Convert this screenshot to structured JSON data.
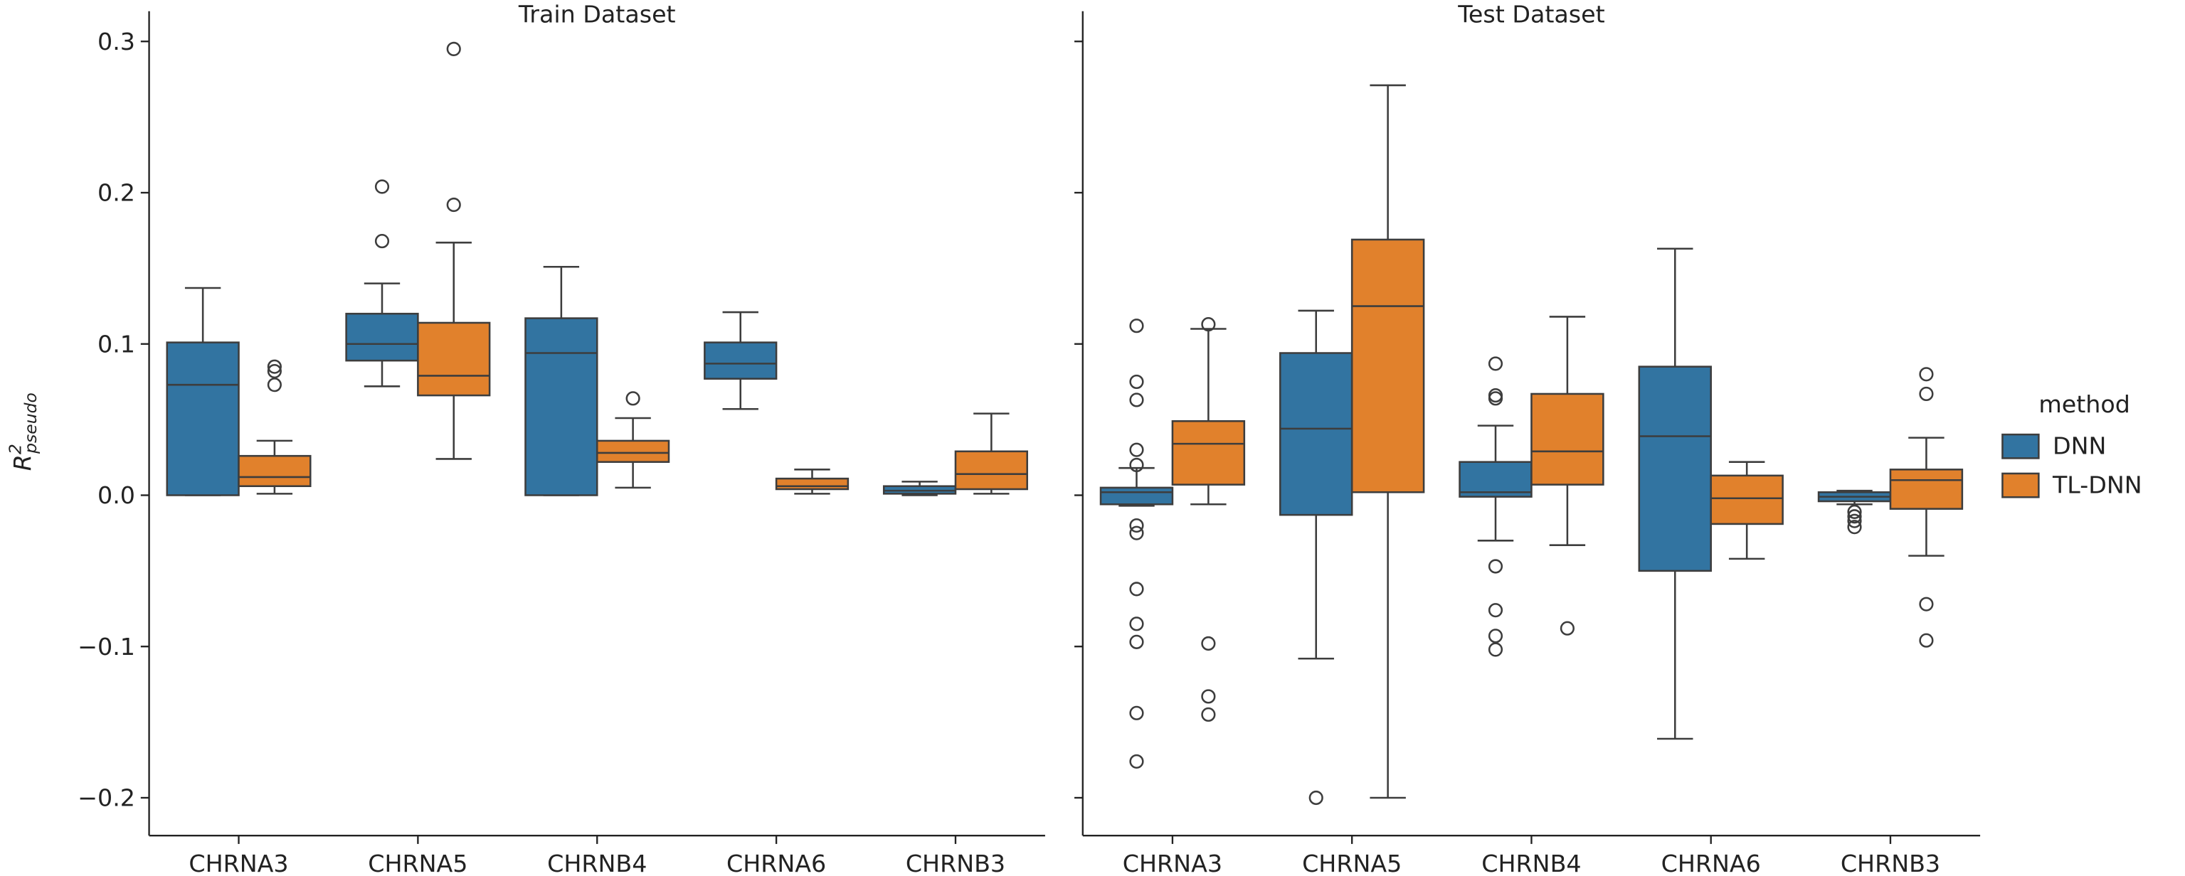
{
  "chart_data": [
    {
      "type": "box",
      "title": "Train Dataset",
      "ylabel": {
        "base": "R",
        "sup": "2",
        "sub": "pseudo"
      },
      "categories": [
        "CHRNA3",
        "CHRNA5",
        "CHRNB4",
        "CHRNA6",
        "CHRNB3"
      ],
      "ylim": [
        -0.225,
        0.32
      ],
      "yticks": [
        {
          "value": -0.2,
          "label": "−0.2"
        },
        {
          "value": -0.1,
          "label": "−0.1"
        },
        {
          "value": 0,
          "label": "0.0"
        },
        0.1,
        0.2,
        0.3
      ],
      "series": [
        {
          "color": "#3274a1",
          "boxes": [
            {
              "min": 0,
              "q1": 0,
              "median": 0.073,
              "q3": 0.101,
              "max": 0.137,
              "outliers": []
            },
            {
              "min": 0.072,
              "q1": 0.089,
              "median": 0.1,
              "q3": 0.12,
              "max": 0.14,
              "outliers": [
                0.168,
                0.204
              ]
            },
            {
              "min": 0,
              "q1": 0,
              "median": 0.094,
              "q3": 0.117,
              "max": 0.151,
              "outliers": []
            },
            {
              "min": 0.057,
              "q1": 0.077,
              "median": 0.087,
              "q3": 0.101,
              "max": 0.121,
              "outliers": []
            },
            {
              "min": 0,
              "q1": 0.001,
              "median": 0.003,
              "q3": 0.006,
              "max": 0.009,
              "outliers": []
            }
          ]
        },
        {
          "color": "#e1812c",
          "boxes": [
            {
              "min": 0.001,
              "q1": 0.006,
              "median": 0.012,
              "q3": 0.026,
              "max": 0.036,
              "outliers": [
                0.073,
                0.082,
                0.085
              ]
            },
            {
              "min": 0.024,
              "q1": 0.066,
              "median": 0.079,
              "q3": 0.114,
              "max": 0.167,
              "outliers": [
                0.192,
                0.295
              ]
            },
            {
              "min": 0.005,
              "q1": 0.022,
              "median": 0.028,
              "q3": 0.036,
              "max": 0.051,
              "outliers": [
                0.064
              ]
            },
            {
              "min": 0.001,
              "q1": 0.004,
              "median": 0.006,
              "q3": 0.011,
              "max": 0.017,
              "outliers": []
            },
            {
              "min": 0.001,
              "q1": 0.004,
              "median": 0.014,
              "q3": 0.029,
              "max": 0.054,
              "outliers": []
            }
          ]
        }
      ]
    },
    {
      "type": "box",
      "title": "Test Dataset",
      "categories": [
        "CHRNA3",
        "CHRNA5",
        "CHRNB4",
        "CHRNA6",
        "CHRNB3"
      ],
      "ylim": [
        -0.225,
        0.32
      ],
      "yticks": [
        -0.2,
        -0.1,
        0,
        0.1,
        0.2,
        0.3
      ],
      "legend": "right",
      "legend_title": "method",
      "series": [
        {
          "name": "DNN",
          "color": "#3274a1",
          "boxes": [
            {
              "min": -0.007,
              "q1": -0.006,
              "median": 0.002,
              "q3": 0.005,
              "max": 0.018,
              "outliers": [
                0.112,
                0.075,
                0.063,
                0.03,
                0.02,
                -0.02,
                -0.025,
                -0.062,
                -0.085,
                -0.097,
                -0.144,
                -0.176
              ]
            },
            {
              "min": -0.108,
              "q1": -0.013,
              "median": 0.044,
              "q3": 0.094,
              "max": 0.122,
              "outliers": [
                -0.2
              ]
            },
            {
              "min": -0.03,
              "q1": -0.001,
              "median": 0.002,
              "q3": 0.022,
              "max": 0.046,
              "outliers": [
                0.087,
                0.066,
                0.064,
                -0.047,
                -0.076,
                -0.093,
                -0.102
              ]
            },
            {
              "min": -0.161,
              "q1": -0.05,
              "median": 0.039,
              "q3": 0.085,
              "max": 0.163,
              "outliers": []
            },
            {
              "min": -0.006,
              "q1": -0.004,
              "median": -0.001,
              "q3": 0.002,
              "max": 0.003,
              "outliers": [
                -0.011,
                -0.014,
                -0.017,
                -0.021
              ]
            }
          ]
        },
        {
          "name": "TL-DNN",
          "color": "#e1812c",
          "boxes": [
            {
              "min": -0.006,
              "q1": 0.007,
              "median": 0.034,
              "q3": 0.049,
              "max": 0.11,
              "outliers": [
                0.113,
                -0.098,
                -0.133,
                -0.145
              ]
            },
            {
              "min": -0.2,
              "q1": 0.002,
              "median": 0.125,
              "q3": 0.169,
              "max": 0.271,
              "outliers": []
            },
            {
              "min": -0.033,
              "q1": 0.007,
              "median": 0.029,
              "q3": 0.067,
              "max": 0.118,
              "outliers": [
                -0.088
              ]
            },
            {
              "min": -0.042,
              "q1": -0.019,
              "median": -0.002,
              "q3": 0.013,
              "max": 0.022,
              "outliers": []
            },
            {
              "min": -0.04,
              "q1": -0.009,
              "median": 0.01,
              "q3": 0.017,
              "max": 0.038,
              "outliers": [
                0.08,
                0.067,
                -0.072,
                -0.096
              ]
            }
          ]
        }
      ]
    }
  ]
}
